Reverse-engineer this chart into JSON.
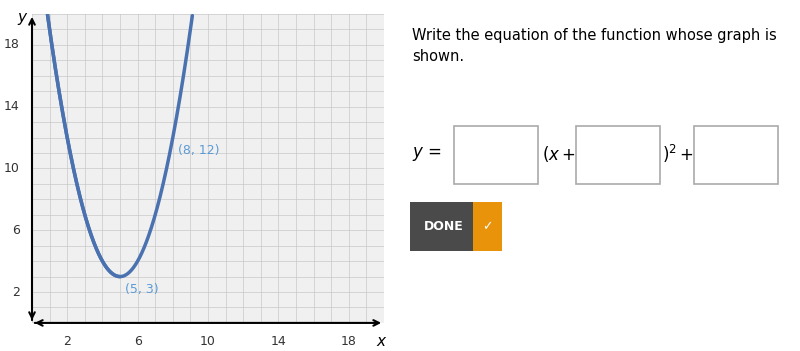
{
  "graph": {
    "xlim": [
      0,
      20
    ],
    "ylim": [
      0,
      20
    ],
    "x_display_min": 0,
    "x_display_max": 19,
    "y_display_min": 0,
    "y_display_max": 20,
    "xticks": [
      2,
      6,
      10,
      14,
      18
    ],
    "yticks": [
      2,
      6,
      10,
      14,
      18
    ],
    "curve_color": "#4a72b0",
    "curve_lw": 2.5,
    "vertex_x": 5,
    "vertex_y": 3,
    "point1_x": 8,
    "point1_y": 12,
    "a": 1,
    "label_color": "#5B9BD5",
    "axis_color": "#000000",
    "grid_major_color": "#C8C8C8",
    "grid_minor_color": "#E0E0E0",
    "bg_color": "#FFFFFF",
    "plot_bg": "#F5F5F5",
    "ylabel_text": "y",
    "xlabel_text": "x",
    "tick_fontsize": 9,
    "label_fontsize": 9
  },
  "right_panel": {
    "instruction": "Write the equation of the function whose graph is\nshown.",
    "done_text": "DONE",
    "done_bg": "#4a4a4a",
    "done_check_color": "#E8930A",
    "text_color": "#000000",
    "instruction_fontsize": 10.5,
    "equation_fontsize": 12,
    "box_edge_color": "#AAAAAA",
    "box_face_color": "#FFFFFF"
  }
}
